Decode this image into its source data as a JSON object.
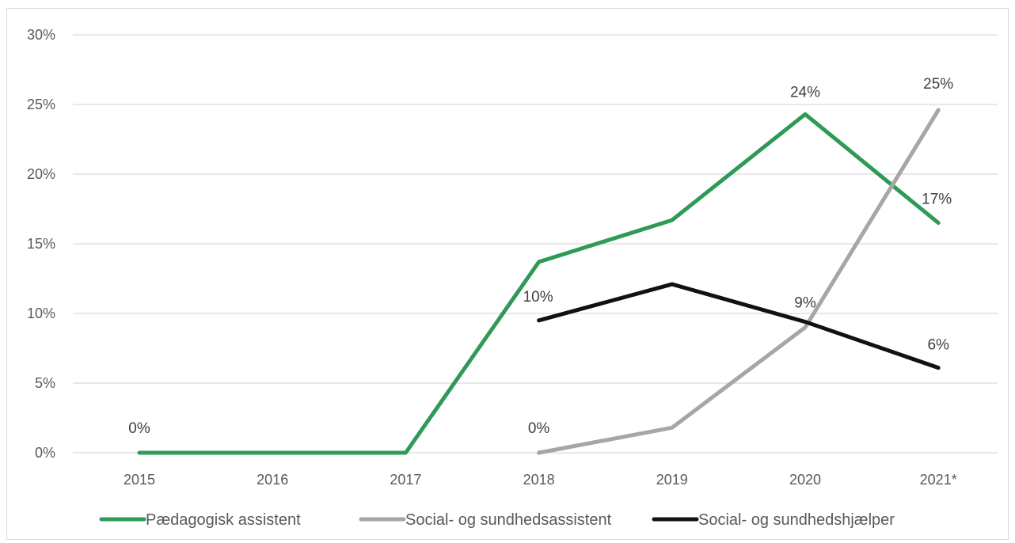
{
  "chart_data": {
    "type": "line",
    "categories": [
      "2015",
      "2016",
      "2017",
      "2018",
      "2019",
      "2020",
      "2021*"
    ],
    "y_tick_labels": [
      "0%",
      "5%",
      "10%",
      "15%",
      "20%",
      "25%",
      "30%"
    ],
    "ylim": [
      0,
      30
    ],
    "grid": true,
    "legend_position": "bottom",
    "series": [
      {
        "name": "Pædagogisk assistent",
        "color": "#2e9a55",
        "values": [
          0,
          0,
          0,
          13.7,
          16.7,
          24.3,
          16.5
        ],
        "data_labels": [
          {
            "index": 0,
            "text": "0%"
          },
          {
            "index": 5,
            "text": "24%"
          },
          {
            "index": 6,
            "text": "17%"
          }
        ]
      },
      {
        "name": "Social- og sundhedsassistent",
        "color": "#a6a6a6",
        "values": [
          null,
          null,
          null,
          0,
          1.8,
          9.0,
          24.6
        ],
        "data_labels": [
          {
            "index": 3,
            "text": "0%"
          },
          {
            "index": 5,
            "text": "9%"
          },
          {
            "index": 6,
            "text": "25%"
          }
        ]
      },
      {
        "name": "Social- og sundhedshjælper",
        "color": "#111111",
        "values": [
          null,
          null,
          null,
          9.5,
          12.1,
          9.4,
          6.1
        ],
        "data_labels": [
          {
            "index": 3,
            "text": "10%"
          },
          {
            "index": 6,
            "text": "6%"
          }
        ]
      }
    ]
  }
}
